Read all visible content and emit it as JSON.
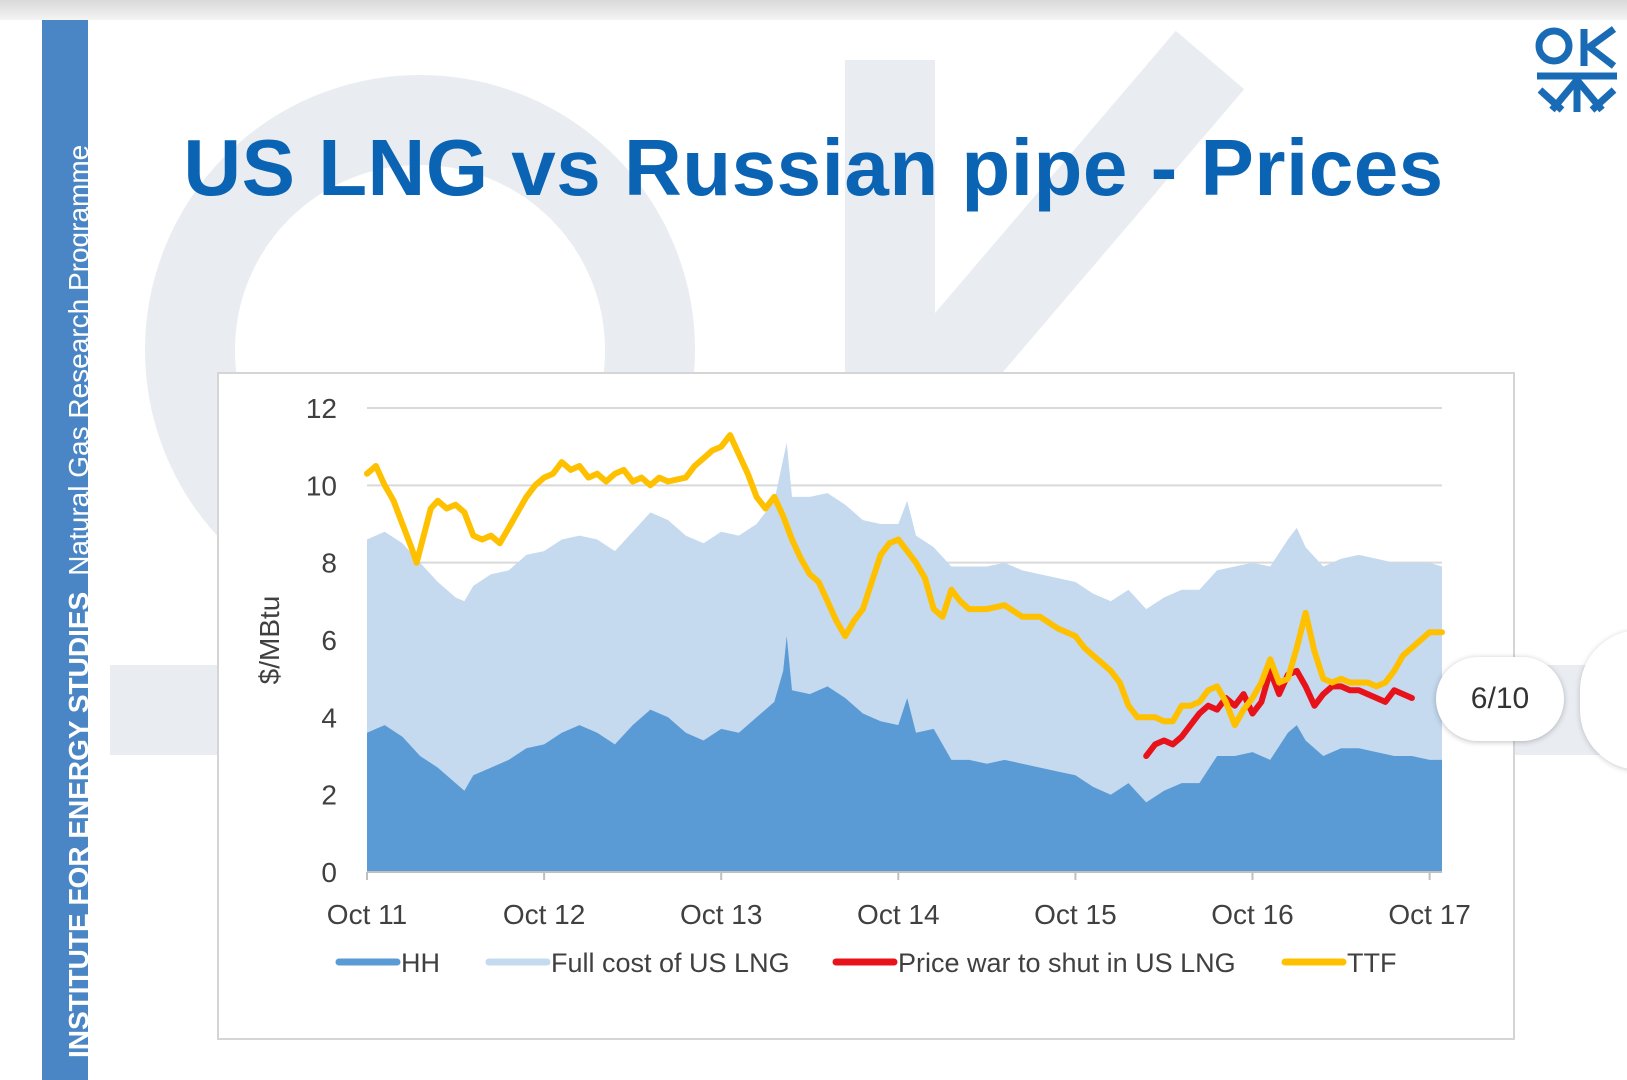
{
  "slide": {
    "title": "US LNG vs Russian pipe - Prices",
    "band_institute": "INSTITUTE FOR ENERGY STUDIES",
    "band_programme": "Natural Gas Research Programme",
    "page_indicator": "6/10",
    "logo_icon": "oies-logo-icon",
    "colors": {
      "title": "#0b64b3",
      "band": "#4a86c5"
    }
  },
  "chart_data": {
    "type": "area",
    "ylabel": "$/MBtu",
    "ylim": [
      0,
      12
    ],
    "yticks": [
      "0",
      "2",
      "4",
      "6",
      "8",
      "10",
      "12"
    ],
    "xlim": [
      0,
      6
    ],
    "xticks": [
      {
        "label": "Oct 11",
        "x": 0
      },
      {
        "label": "Oct 12",
        "x": 1
      },
      {
        "label": "Oct 13",
        "x": 2
      },
      {
        "label": "Oct 14",
        "x": 3
      },
      {
        "label": "Oct 15",
        "x": 4
      },
      {
        "label": "Oct 16",
        "x": 5
      },
      {
        "label": "Oct 17",
        "x": 6
      }
    ],
    "grid": true,
    "legend_position": "bottom",
    "series": [
      {
        "name": "HH",
        "type": "area",
        "color": "#5b9bd5",
        "points": [
          [
            0,
            3.6
          ],
          [
            0.1,
            3.8
          ],
          [
            0.2,
            3.5
          ],
          [
            0.3,
            3.0
          ],
          [
            0.4,
            2.7
          ],
          [
            0.5,
            2.3
          ],
          [
            0.55,
            2.1
          ],
          [
            0.6,
            2.5
          ],
          [
            0.7,
            2.7
          ],
          [
            0.8,
            2.9
          ],
          [
            0.9,
            3.2
          ],
          [
            1.0,
            3.3
          ],
          [
            1.1,
            3.6
          ],
          [
            1.2,
            3.8
          ],
          [
            1.3,
            3.6
          ],
          [
            1.4,
            3.3
          ],
          [
            1.5,
            3.8
          ],
          [
            1.6,
            4.2
          ],
          [
            1.7,
            4.0
          ],
          [
            1.8,
            3.6
          ],
          [
            1.9,
            3.4
          ],
          [
            2.0,
            3.7
          ],
          [
            2.1,
            3.6
          ],
          [
            2.2,
            4.0
          ],
          [
            2.3,
            4.4
          ],
          [
            2.35,
            5.2
          ],
          [
            2.37,
            6.1
          ],
          [
            2.4,
            4.7
          ],
          [
            2.5,
            4.6
          ],
          [
            2.6,
            4.8
          ],
          [
            2.7,
            4.5
          ],
          [
            2.8,
            4.1
          ],
          [
            2.9,
            3.9
          ],
          [
            3.0,
            3.8
          ],
          [
            3.05,
            4.5
          ],
          [
            3.1,
            3.6
          ],
          [
            3.2,
            3.7
          ],
          [
            3.3,
            2.9
          ],
          [
            3.4,
            2.9
          ],
          [
            3.5,
            2.8
          ],
          [
            3.6,
            2.9
          ],
          [
            3.7,
            2.8
          ],
          [
            3.8,
            2.7
          ],
          [
            3.9,
            2.6
          ],
          [
            4.0,
            2.5
          ],
          [
            4.1,
            2.2
          ],
          [
            4.2,
            2.0
          ],
          [
            4.3,
            2.3
          ],
          [
            4.4,
            1.8
          ],
          [
            4.5,
            2.1
          ],
          [
            4.6,
            2.3
          ],
          [
            4.7,
            2.3
          ],
          [
            4.8,
            3.0
          ],
          [
            4.9,
            3.0
          ],
          [
            5.0,
            3.1
          ],
          [
            5.1,
            2.9
          ],
          [
            5.2,
            3.6
          ],
          [
            5.25,
            3.8
          ],
          [
            5.3,
            3.4
          ],
          [
            5.4,
            3.0
          ],
          [
            5.5,
            3.2
          ],
          [
            5.6,
            3.2
          ],
          [
            5.7,
            3.1
          ],
          [
            5.8,
            3.0
          ],
          [
            5.9,
            3.0
          ],
          [
            6.0,
            2.9
          ],
          [
            6.07,
            2.9
          ]
        ]
      },
      {
        "name": "Full cost of US LNG",
        "type": "area",
        "color": "#c5d9ef",
        "points": [
          [
            0,
            8.6
          ],
          [
            0.1,
            8.8
          ],
          [
            0.2,
            8.5
          ],
          [
            0.3,
            8.0
          ],
          [
            0.4,
            7.5
          ],
          [
            0.5,
            7.1
          ],
          [
            0.55,
            7.0
          ],
          [
            0.6,
            7.4
          ],
          [
            0.7,
            7.7
          ],
          [
            0.8,
            7.8
          ],
          [
            0.9,
            8.2
          ],
          [
            1.0,
            8.3
          ],
          [
            1.1,
            8.6
          ],
          [
            1.2,
            8.7
          ],
          [
            1.3,
            8.6
          ],
          [
            1.4,
            8.3
          ],
          [
            1.5,
            8.8
          ],
          [
            1.6,
            9.3
          ],
          [
            1.7,
            9.1
          ],
          [
            1.8,
            8.7
          ],
          [
            1.9,
            8.5
          ],
          [
            2.0,
            8.8
          ],
          [
            2.1,
            8.7
          ],
          [
            2.2,
            9.0
          ],
          [
            2.3,
            9.6
          ],
          [
            2.37,
            11.1
          ],
          [
            2.4,
            9.7
          ],
          [
            2.5,
            9.7
          ],
          [
            2.6,
            9.8
          ],
          [
            2.7,
            9.5
          ],
          [
            2.8,
            9.1
          ],
          [
            2.9,
            9.0
          ],
          [
            3.0,
            9.0
          ],
          [
            3.05,
            9.6
          ],
          [
            3.1,
            8.7
          ],
          [
            3.2,
            8.4
          ],
          [
            3.3,
            7.9
          ],
          [
            3.4,
            7.9
          ],
          [
            3.5,
            7.9
          ],
          [
            3.6,
            8.0
          ],
          [
            3.7,
            7.8
          ],
          [
            3.8,
            7.7
          ],
          [
            3.9,
            7.6
          ],
          [
            4.0,
            7.5
          ],
          [
            4.1,
            7.2
          ],
          [
            4.2,
            7.0
          ],
          [
            4.3,
            7.3
          ],
          [
            4.4,
            6.8
          ],
          [
            4.5,
            7.1
          ],
          [
            4.6,
            7.3
          ],
          [
            4.7,
            7.3
          ],
          [
            4.8,
            7.8
          ],
          [
            4.9,
            7.9
          ],
          [
            5.0,
            8.0
          ],
          [
            5.1,
            7.9
          ],
          [
            5.2,
            8.6
          ],
          [
            5.25,
            8.9
          ],
          [
            5.3,
            8.4
          ],
          [
            5.4,
            7.9
          ],
          [
            5.5,
            8.1
          ],
          [
            5.6,
            8.2
          ],
          [
            5.7,
            8.1
          ],
          [
            5.8,
            8.0
          ],
          [
            5.9,
            8.0
          ],
          [
            6.0,
            8.0
          ],
          [
            6.07,
            7.9
          ]
        ]
      },
      {
        "name": "Price war to shut in US LNG",
        "type": "line",
        "color": "#e8121a",
        "points": [
          [
            4.4,
            3.0
          ],
          [
            4.45,
            3.3
          ],
          [
            4.5,
            3.4
          ],
          [
            4.55,
            3.3
          ],
          [
            4.6,
            3.5
          ],
          [
            4.65,
            3.8
          ],
          [
            4.7,
            4.1
          ],
          [
            4.75,
            4.3
          ],
          [
            4.8,
            4.2
          ],
          [
            4.85,
            4.5
          ],
          [
            4.9,
            4.3
          ],
          [
            4.95,
            4.6
          ],
          [
            5.0,
            4.1
          ],
          [
            5.05,
            4.4
          ],
          [
            5.1,
            5.2
          ],
          [
            5.15,
            4.6
          ],
          [
            5.2,
            5.1
          ],
          [
            5.25,
            5.2
          ],
          [
            5.3,
            4.8
          ],
          [
            5.35,
            4.3
          ],
          [
            5.4,
            4.6
          ],
          [
            5.45,
            4.8
          ],
          [
            5.5,
            4.8
          ],
          [
            5.55,
            4.7
          ],
          [
            5.6,
            4.7
          ],
          [
            5.65,
            4.6
          ],
          [
            5.7,
            4.5
          ],
          [
            5.75,
            4.4
          ],
          [
            5.8,
            4.7
          ],
          [
            5.85,
            4.6
          ],
          [
            5.9,
            4.5
          ]
        ]
      },
      {
        "name": "TTF",
        "type": "line",
        "color": "#ffc000",
        "points": [
          [
            0,
            10.3
          ],
          [
            0.05,
            10.5
          ],
          [
            0.1,
            10.0
          ],
          [
            0.15,
            9.6
          ],
          [
            0.2,
            9.0
          ],
          [
            0.25,
            8.4
          ],
          [
            0.28,
            8.0
          ],
          [
            0.32,
            8.7
          ],
          [
            0.36,
            9.4
          ],
          [
            0.4,
            9.6
          ],
          [
            0.45,
            9.4
          ],
          [
            0.5,
            9.5
          ],
          [
            0.55,
            9.3
          ],
          [
            0.6,
            8.7
          ],
          [
            0.65,
            8.6
          ],
          [
            0.7,
            8.7
          ],
          [
            0.75,
            8.5
          ],
          [
            0.8,
            8.9
          ],
          [
            0.85,
            9.3
          ],
          [
            0.9,
            9.7
          ],
          [
            0.95,
            10.0
          ],
          [
            1.0,
            10.2
          ],
          [
            1.05,
            10.3
          ],
          [
            1.1,
            10.6
          ],
          [
            1.15,
            10.4
          ],
          [
            1.2,
            10.5
          ],
          [
            1.25,
            10.2
          ],
          [
            1.3,
            10.3
          ],
          [
            1.35,
            10.1
          ],
          [
            1.4,
            10.3
          ],
          [
            1.45,
            10.4
          ],
          [
            1.5,
            10.1
          ],
          [
            1.55,
            10.2
          ],
          [
            1.6,
            10.0
          ],
          [
            1.65,
            10.2
          ],
          [
            1.7,
            10.1
          ],
          [
            1.8,
            10.2
          ],
          [
            1.85,
            10.5
          ],
          [
            1.9,
            10.7
          ],
          [
            1.95,
            10.9
          ],
          [
            2.0,
            11.0
          ],
          [
            2.05,
            11.3
          ],
          [
            2.1,
            10.8
          ],
          [
            2.15,
            10.3
          ],
          [
            2.2,
            9.7
          ],
          [
            2.25,
            9.4
          ],
          [
            2.3,
            9.7
          ],
          [
            2.35,
            9.2
          ],
          [
            2.4,
            8.6
          ],
          [
            2.45,
            8.1
          ],
          [
            2.5,
            7.7
          ],
          [
            2.55,
            7.5
          ],
          [
            2.6,
            7.0
          ],
          [
            2.65,
            6.5
          ],
          [
            2.7,
            6.1
          ],
          [
            2.75,
            6.5
          ],
          [
            2.8,
            6.8
          ],
          [
            2.85,
            7.5
          ],
          [
            2.9,
            8.2
          ],
          [
            2.95,
            8.5
          ],
          [
            3.0,
            8.6
          ],
          [
            3.05,
            8.3
          ],
          [
            3.1,
            8.0
          ],
          [
            3.15,
            7.6
          ],
          [
            3.2,
            6.8
          ],
          [
            3.25,
            6.6
          ],
          [
            3.3,
            7.3
          ],
          [
            3.35,
            7.0
          ],
          [
            3.4,
            6.8
          ],
          [
            3.5,
            6.8
          ],
          [
            3.6,
            6.9
          ],
          [
            3.7,
            6.6
          ],
          [
            3.8,
            6.6
          ],
          [
            3.9,
            6.3
          ],
          [
            4.0,
            6.1
          ],
          [
            4.05,
            5.8
          ],
          [
            4.1,
            5.6
          ],
          [
            4.15,
            5.4
          ],
          [
            4.2,
            5.2
          ],
          [
            4.25,
            4.9
          ],
          [
            4.3,
            4.3
          ],
          [
            4.35,
            4.0
          ],
          [
            4.4,
            4.0
          ],
          [
            4.45,
            4.0
          ],
          [
            4.5,
            3.9
          ],
          [
            4.55,
            3.9
          ],
          [
            4.6,
            4.3
          ],
          [
            4.65,
            4.3
          ],
          [
            4.7,
            4.4
          ],
          [
            4.75,
            4.7
          ],
          [
            4.8,
            4.8
          ],
          [
            4.85,
            4.4
          ],
          [
            4.9,
            3.8
          ],
          [
            4.95,
            4.2
          ],
          [
            5.0,
            4.5
          ],
          [
            5.05,
            4.9
          ],
          [
            5.1,
            5.5
          ],
          [
            5.15,
            4.9
          ],
          [
            5.2,
            5.0
          ],
          [
            5.25,
            5.8
          ],
          [
            5.3,
            6.7
          ],
          [
            5.35,
            5.7
          ],
          [
            5.4,
            5.0
          ],
          [
            5.45,
            4.9
          ],
          [
            5.5,
            5.0
          ],
          [
            5.55,
            4.9
          ],
          [
            5.6,
            4.9
          ],
          [
            5.65,
            4.9
          ],
          [
            5.7,
            4.8
          ],
          [
            5.75,
            4.9
          ],
          [
            5.8,
            5.2
          ],
          [
            5.85,
            5.6
          ],
          [
            5.9,
            5.8
          ],
          [
            5.95,
            6.0
          ],
          [
            6.0,
            6.2
          ],
          [
            6.07,
            6.2
          ]
        ]
      }
    ]
  }
}
